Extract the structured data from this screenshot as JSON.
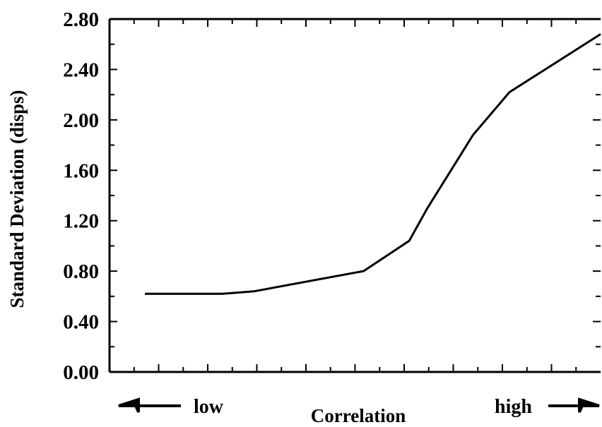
{
  "chart_data": {
    "type": "line",
    "title": "",
    "xlabel": "Correlation",
    "ylabel": "Standard Deviation (disps)",
    "x_direction_labels": {
      "low": "low",
      "high": "high"
    },
    "ylim": [
      0.0,
      2.8
    ],
    "y_tick_labels": [
      "0.00",
      "0.40",
      "0.80",
      "1.20",
      "1.60",
      "2.00",
      "2.40",
      "2.80"
    ],
    "grid": false,
    "series": [
      {
        "x": [
          0.0,
          0.17,
          0.24,
          0.48,
          0.58,
          0.62,
          0.72,
          0.8,
          1.0
        ],
        "y": [
          0.62,
          0.62,
          0.64,
          0.8,
          1.04,
          1.3,
          1.88,
          2.22,
          2.68
        ]
      }
    ]
  }
}
